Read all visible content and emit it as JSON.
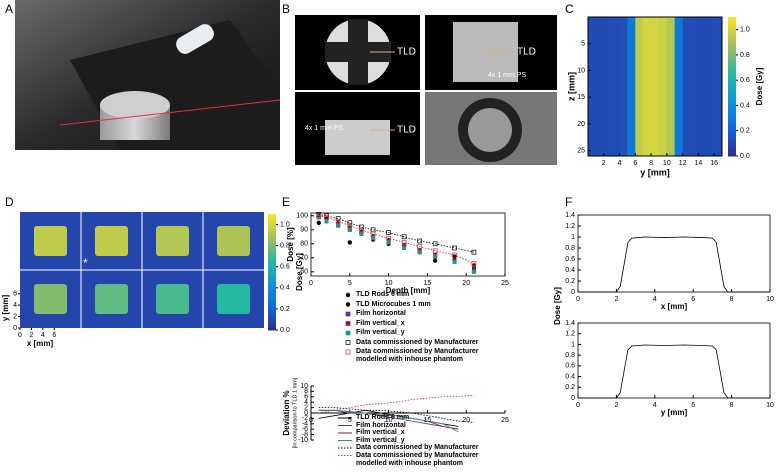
{
  "figure": {
    "panel_labels": [
      "A",
      "B",
      "C",
      "D",
      "E",
      "F"
    ],
    "panel_b": {
      "tld": [
        "TLD",
        "TLD",
        "TLD"
      ],
      "ps": [
        "4x 1 mm PS",
        "4x 1 mm PS"
      ]
    }
  },
  "chart_data": [
    {
      "type": "heatmap",
      "xlabel": "y [mm]",
      "ylabel": "z [mm]",
      "colorbar_label": "Dose [Gy]",
      "xlim": [
        0,
        17
      ],
      "ylim": [
        0,
        26
      ],
      "xticks": [
        2,
        4,
        6,
        8,
        10,
        12,
        14,
        16
      ],
      "yticks": [
        5,
        10,
        15,
        20,
        25
      ],
      "x": [
        0.5,
        1.5,
        2.5,
        3.5,
        4.5,
        5.5,
        6.5,
        7.5,
        8.5,
        9.5,
        10.5,
        11.5,
        12.5,
        13.5,
        14.5,
        15.5,
        16.5
      ],
      "values": [
        0.12,
        0.12,
        0.12,
        0.12,
        0.13,
        0.3,
        0.95,
        1.0,
        1.0,
        0.98,
        0.92,
        0.3,
        0.13,
        0.12,
        0.12,
        0.12,
        0.12
      ],
      "clim": [
        0,
        1.1
      ],
      "cticks": [
        {
          "value": 0,
          "label": "0.0"
        },
        0.2,
        0.4,
        0.6,
        0.8,
        {
          "value": 1,
          "label": "1.0"
        }
      ]
    },
    {
      "type": "heatmap-grid",
      "xlabel": "x [mm]",
      "ylabel": "y [mm]",
      "colorbar_label": "Dose [Gy]",
      "values": [
        [
          0.95,
          0.95,
          0.92,
          0.9
        ],
        [
          0.82,
          0.76,
          0.72,
          0.66
        ]
      ],
      "annotation": "*",
      "xticks": [
        0,
        2,
        4,
        6
      ],
      "yticks": [
        0,
        2,
        4,
        6
      ],
      "xlim": [
        0,
        7
      ],
      "ylim": [
        0,
        7
      ],
      "clim": [
        0,
        1.1
      ],
      "cticks": [
        {
          "value": 0,
          "label": "0.0"
        },
        0.2,
        0.4,
        0.6,
        0.8,
        {
          "value": 1,
          "label": "1.0"
        }
      ]
    },
    {
      "type": "scatter",
      "ylabel": "Dose [%]",
      "xlabel": "Depth [mm]",
      "xlim": [
        0,
        25
      ],
      "ylim": [
        57,
        102
      ],
      "xticks": [
        0,
        5,
        10,
        15,
        20,
        25
      ],
      "yticks": [
        60,
        70,
        80,
        90,
        100
      ],
      "x": [
        1,
        2,
        3.5,
        5,
        6.5,
        8,
        10,
        12,
        14,
        16,
        18.5,
        21
      ],
      "series": [
        {
          "name": "TLD Rods 6 mm",
          "color": "#000000",
          "marker": "circle",
          "values": [
            95,
            98,
            93,
            81,
            88,
            83,
            80,
            79,
            74,
            68,
            71,
            60
          ]
        },
        {
          "name": "TLD Microcubes 1 mm",
          "color": "#000000",
          "marker": "dot",
          "values": [
            100,
            98,
            95,
            92,
            89,
            86,
            83,
            79,
            76,
            72,
            69,
            65
          ]
        },
        {
          "name": "Film horizontal",
          "color": "#6a2c8a",
          "marker": "square",
          "values": [
            99,
            96,
            93,
            90,
            87,
            84,
            81,
            78,
            75,
            71,
            68,
            63
          ]
        },
        {
          "name": "Film vertical_x",
          "color": "#8b1a3a",
          "marker": "square",
          "values": [
            99,
            97,
            94,
            91,
            88,
            85,
            82,
            79,
            75,
            72,
            68,
            62
          ]
        },
        {
          "name": "Film vertical_y",
          "color": "#1a9a8a",
          "marker": "square",
          "values": [
            99,
            96,
            93,
            90,
            87,
            84,
            81,
            77,
            74,
            71,
            67,
            60
          ]
        },
        {
          "name": "Data commissioned by Manufacturer",
          "color": "#000000",
          "marker": "open",
          "line": "dotted",
          "values": [
            101,
            100,
            98,
            95,
            92,
            90,
            88,
            85,
            82,
            80,
            77,
            74
          ]
        },
        {
          "name": "Data commissioned by Manufacturer modelled with inhouse phantom",
          "color": "#d03030",
          "marker": "open",
          "line": "dotted",
          "values": [
            100,
            99,
            96,
            93,
            90,
            87,
            84,
            81,
            78,
            75,
            72,
            66
          ]
        }
      ]
    },
    {
      "type": "line",
      "ylabel": "Deviation %",
      "ylabel_note": "[in comparison to TLD 1 mm]",
      "xlim": [
        0,
        25
      ],
      "ylim": [
        -10,
        10
      ],
      "xticks": [
        0,
        5,
        10,
        15,
        20,
        25
      ],
      "yticks": [
        10,
        8,
        6,
        4,
        2,
        0,
        -2,
        -4,
        -6,
        -8,
        -10
      ],
      "x": [
        1,
        3,
        5,
        7,
        9,
        11,
        13,
        15,
        17,
        19,
        21
      ],
      "series": [
        {
          "name": "TLD Rods 6 mm",
          "color": "#000000",
          "values": [
            -2,
            -1,
            0,
            1,
            0,
            -1,
            -2,
            -3,
            -4,
            -5,
            null
          ]
        },
        {
          "name": "Film horizontal",
          "color": "#6a2c8a",
          "values": [
            1,
            1,
            0,
            0,
            -1,
            -2,
            -3,
            -4,
            -5,
            -6,
            null
          ]
        },
        {
          "name": "Film vertical_x",
          "color": "#8b1a3a",
          "values": [
            1,
            1,
            0.5,
            0,
            -1,
            -1,
            -2,
            -3,
            -5,
            -6,
            null
          ]
        },
        {
          "name": "Film vertical_y",
          "color": "#1a9a8a",
          "values": [
            1,
            1,
            0.5,
            0,
            -0.5,
            -1,
            -2,
            -3,
            -4,
            -7,
            null
          ]
        },
        {
          "name": "Data commissioned by Manufacturer",
          "color": "#000000",
          "dash": "dotted",
          "values": [
            2,
            2,
            1.5,
            1,
            1,
            0.5,
            0,
            -1,
            -2,
            -3,
            -3.5
          ]
        },
        {
          "name": "Data commissioned by Manufacturer modelled with inhouse phantom",
          "color": "#d03030",
          "dash": "dotted",
          "values": [
            0,
            1,
            2,
            3,
            3.5,
            4,
            5,
            5.5,
            6,
            6.2,
            6.5
          ]
        }
      ]
    },
    {
      "type": "line",
      "xlabel": "x [mm]",
      "ylabel": "Dose [Gy]",
      "xlim": [
        0,
        10
      ],
      "ylim": [
        0,
        1.4
      ],
      "xticks": [
        0,
        2,
        4,
        6,
        8,
        10
      ],
      "yticks": [
        0,
        0.2,
        0.4,
        0.6,
        0.8,
        1,
        1.2,
        1.4
      ],
      "x": [
        0,
        2,
        2.2,
        2.4,
        2.6,
        2.8,
        3.5,
        4.5,
        5.5,
        6.5,
        7,
        7.2,
        7.4,
        7.6,
        7.8,
        10
      ],
      "series": [
        {
          "color": "#000000",
          "values": [
            0,
            0,
            0.1,
            0.5,
            0.9,
            0.98,
            1,
            0.99,
            1,
            0.99,
            0.98,
            0.9,
            0.5,
            0.1,
            0,
            0
          ]
        }
      ]
    },
    {
      "type": "line",
      "xlabel": "y [mm]",
      "xlim": [
        0,
        10
      ],
      "ylim": [
        0,
        1.4
      ],
      "xticks": [
        0,
        2,
        4,
        6,
        8,
        10
      ],
      "yticks": [
        0,
        0.2,
        0.4,
        0.6,
        0.8,
        1,
        1.2,
        1.4
      ],
      "x": [
        0,
        2,
        2.2,
        2.4,
        2.6,
        2.8,
        3.5,
        4.5,
        5.5,
        6.5,
        7,
        7.2,
        7.4,
        7.6,
        7.8,
        10
      ],
      "series": [
        {
          "color": "#000000",
          "values": [
            0,
            0,
            0.1,
            0.5,
            0.9,
            0.97,
            0.99,
            0.98,
            0.99,
            0.98,
            0.97,
            0.9,
            0.5,
            0.1,
            0,
            0
          ]
        }
      ]
    }
  ]
}
